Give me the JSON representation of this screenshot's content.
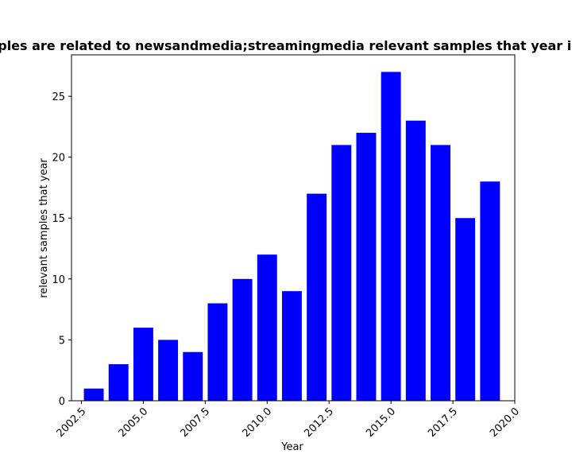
{
  "chart_data": {
    "type": "bar",
    "title": "Number of samples are related to newsandmedia;streamingmedia relevant samples that year in privacy policies",
    "xlabel": "Year",
    "ylabel": "relevant samples that year",
    "x": [
      2003,
      2004,
      2005,
      2006,
      2007,
      2008,
      2009,
      2010,
      2011,
      2012,
      2013,
      2014,
      2015,
      2016,
      2017,
      2018,
      2019
    ],
    "values": [
      1,
      3,
      6,
      5,
      4,
      8,
      10,
      12,
      9,
      17,
      21,
      22,
      27,
      23,
      21,
      15,
      18
    ],
    "bar_width": 0.8,
    "xlim": [
      2002.1,
      2020.0
    ],
    "ylim": [
      0,
      28.4
    ],
    "xticks": [
      2002.5,
      2005.0,
      2007.5,
      2010.0,
      2012.5,
      2015.0,
      2017.5,
      2020.0
    ],
    "xtick_labels": [
      "2002.5",
      "2005.0",
      "2007.5",
      "2010.0",
      "2012.5",
      "2015.0",
      "2017.5",
      "2020.0"
    ],
    "yticks": [
      0,
      5,
      10,
      15,
      20,
      25
    ],
    "ytick_labels": [
      "0",
      "5",
      "10",
      "15",
      "20",
      "25"
    ],
    "bar_color": "#0000ff",
    "grid": false,
    "legend": "none"
  }
}
